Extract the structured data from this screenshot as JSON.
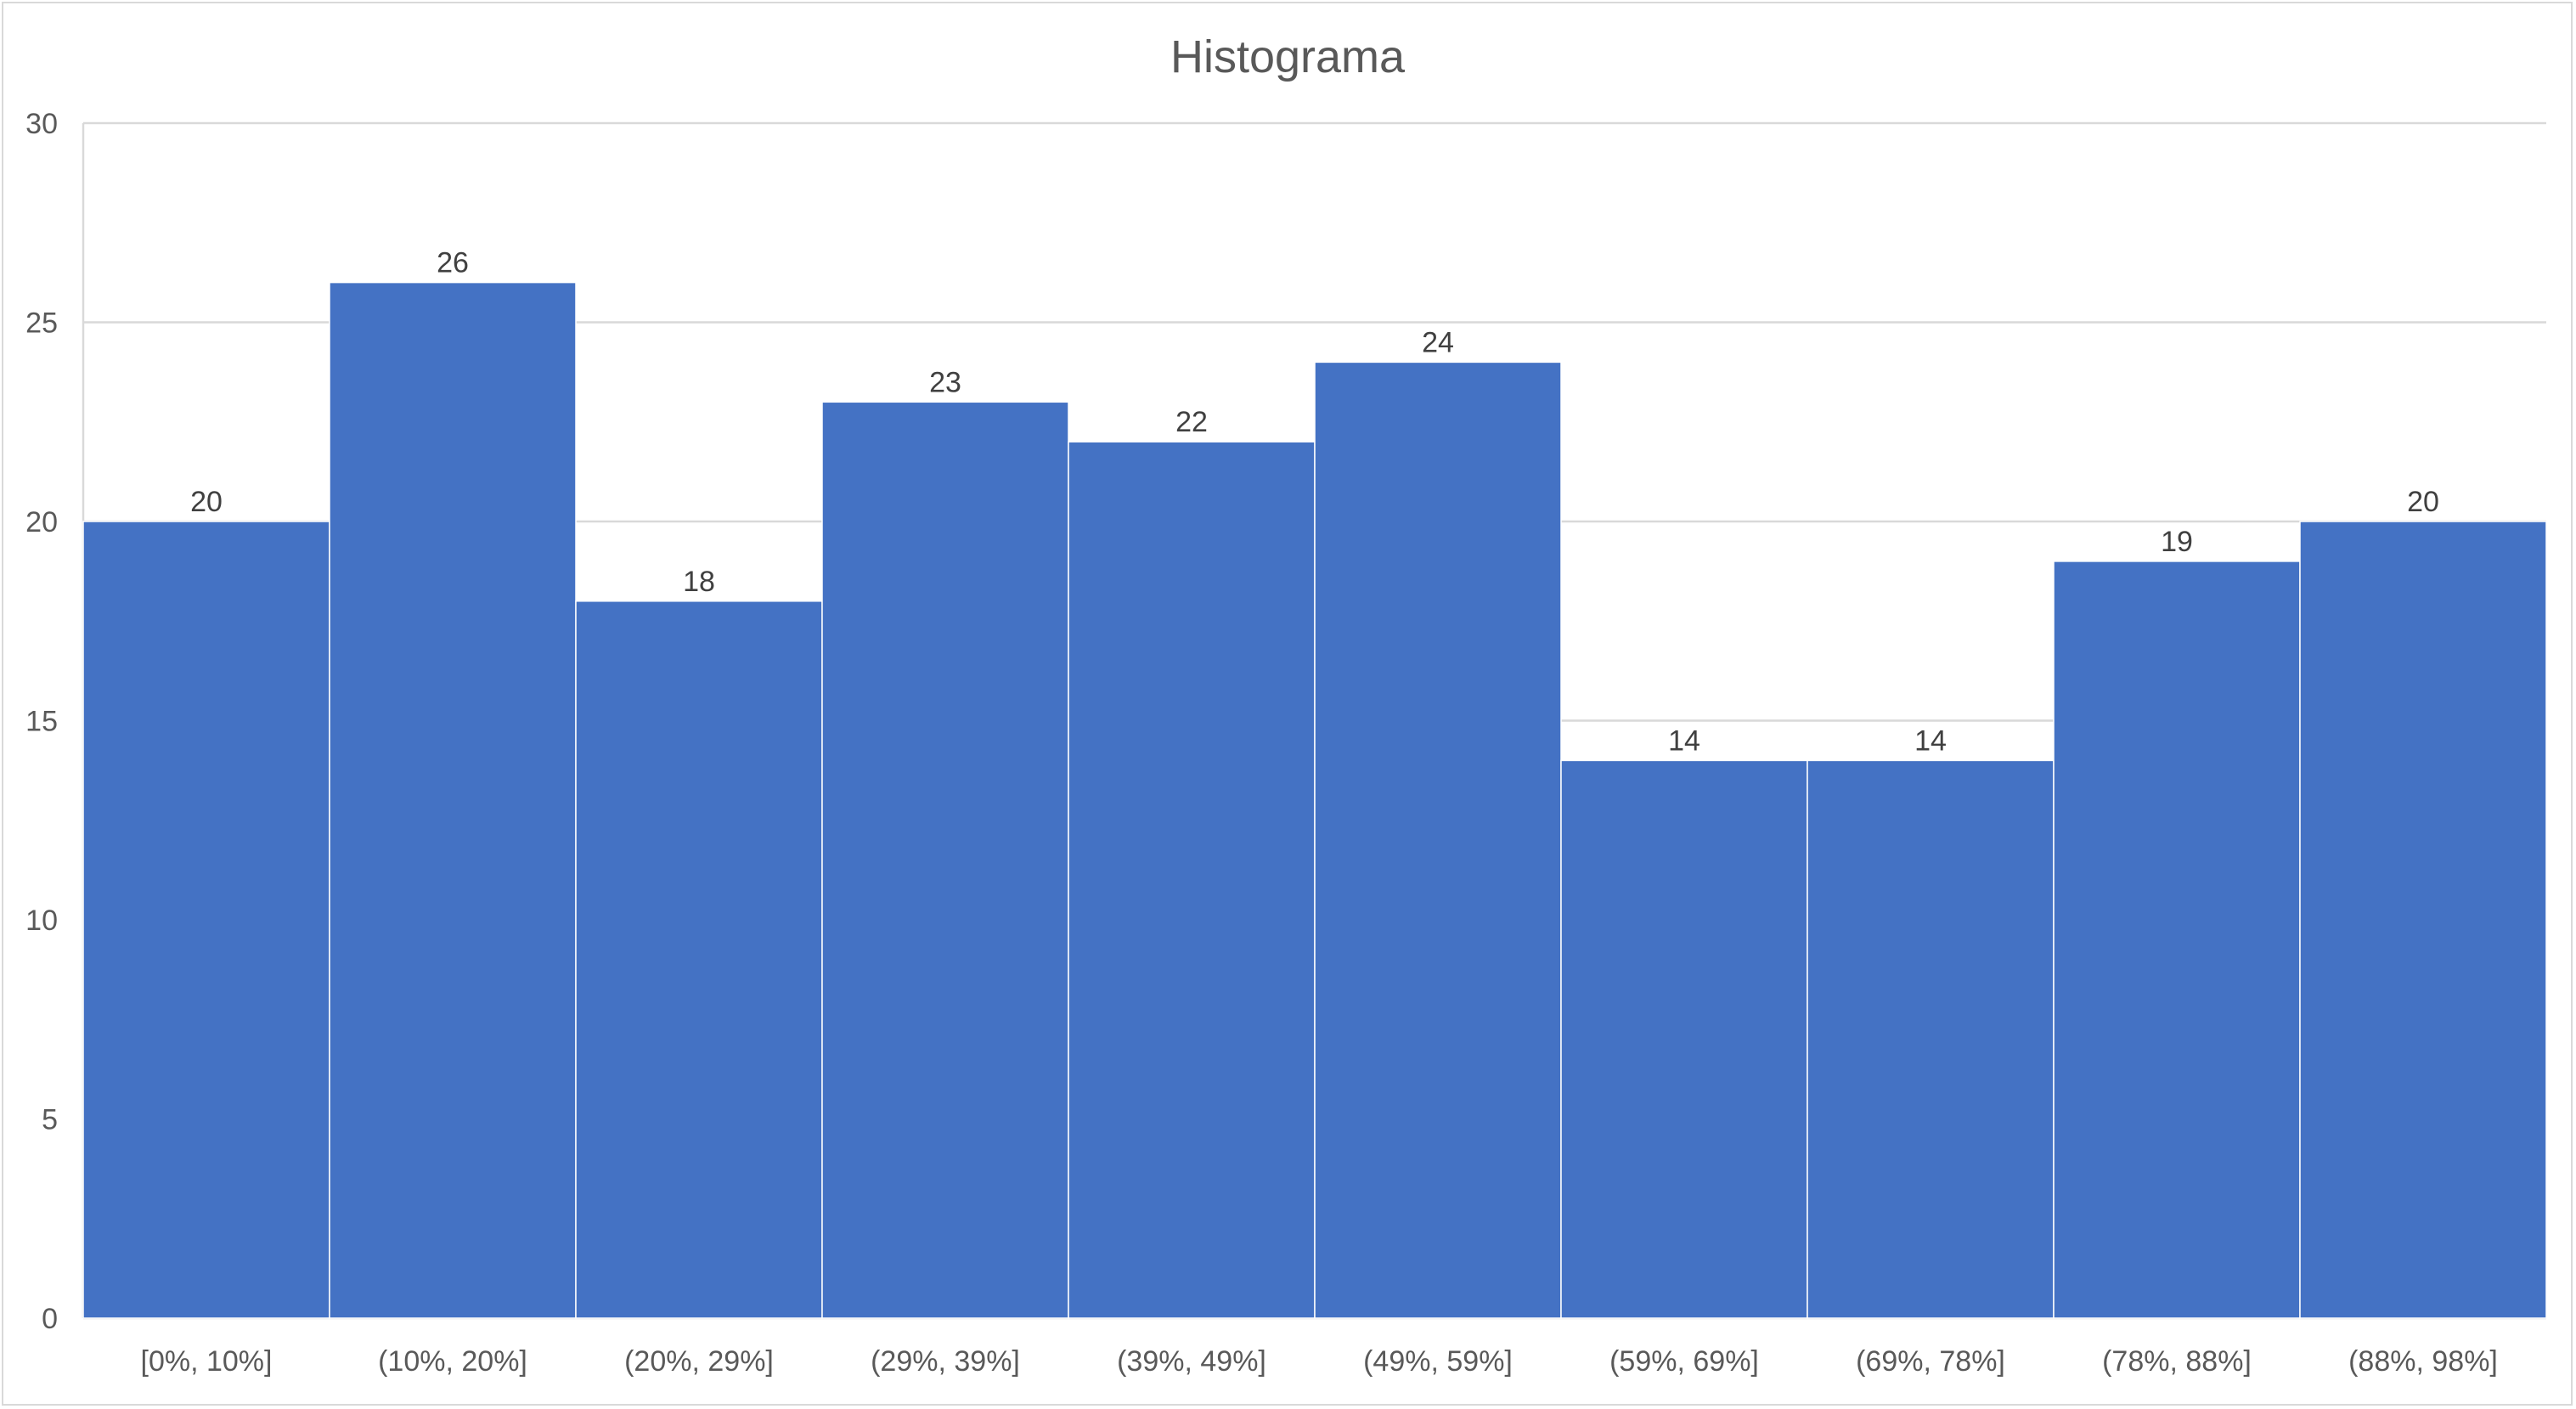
{
  "chart_data": {
    "type": "bar",
    "title": "Histograma",
    "xlabel": "",
    "ylabel": "",
    "categories": [
      "[0%, 10%]",
      "(10%, 20%]",
      "(20%, 29%]",
      "(29%, 39%]",
      "(39%, 49%]",
      "(49%, 59%]",
      "(59%, 69%]",
      "(69%, 78%]",
      "(78%, 88%]",
      "(88%, 98%]"
    ],
    "values": [
      20,
      26,
      18,
      23,
      22,
      24,
      14,
      14,
      19,
      20
    ],
    "ylim": [
      0,
      30
    ],
    "yticks": [
      0,
      5,
      10,
      15,
      20,
      25,
      30
    ],
    "grid": true,
    "legend": "none",
    "data_labels": true,
    "colors": {
      "bar": "#4472C4",
      "bar_edge": "#ffffff",
      "grid": "#d9d9d9",
      "text": "#595959"
    }
  }
}
